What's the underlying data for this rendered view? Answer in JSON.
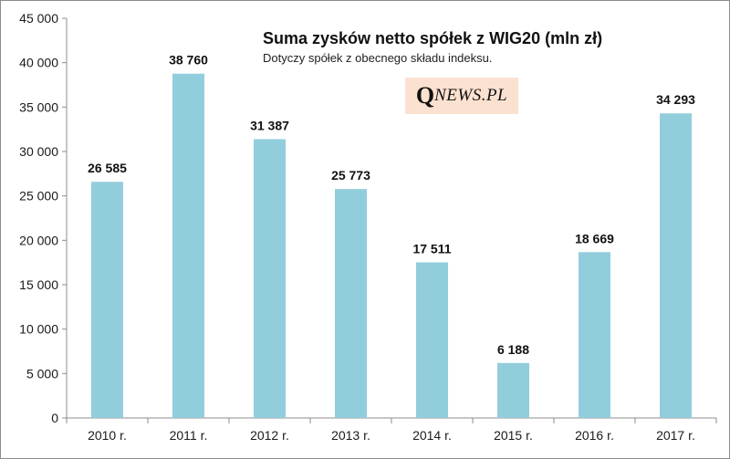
{
  "chart_data": {
    "type": "bar",
    "title": "Suma zysków netto spółek z WIG20 (mln zł)",
    "subtitle": "Dotyczy spółek z obecnego składu indeksu.",
    "categories": [
      "2010 r.",
      "2011 r.",
      "2012 r.",
      "2013 r.",
      "2014 r.",
      "2015 r.",
      "2016 r.",
      "2017 r."
    ],
    "values": [
      26585,
      38760,
      31387,
      25773,
      17511,
      6188,
      18669,
      34293
    ],
    "value_labels": [
      "26 585",
      "38 760",
      "31 387",
      "25 773",
      "17 511",
      "6 188",
      "18 669",
      "34 293"
    ],
    "yticks": [
      0,
      5000,
      10000,
      15000,
      20000,
      25000,
      30000,
      35000,
      40000,
      45000
    ],
    "ytick_labels": [
      "0",
      "5 000",
      "10 000",
      "15 000",
      "20 000",
      "25 000",
      "30 000",
      "35 000",
      "40 000",
      "45 000"
    ],
    "ylim": [
      0,
      45000
    ],
    "grid": false,
    "legend": "none",
    "bar_color": "#92cddc"
  },
  "logo": {
    "q": "Q",
    "rest": "NEWS.PL",
    "background": "#fbe1cf"
  }
}
